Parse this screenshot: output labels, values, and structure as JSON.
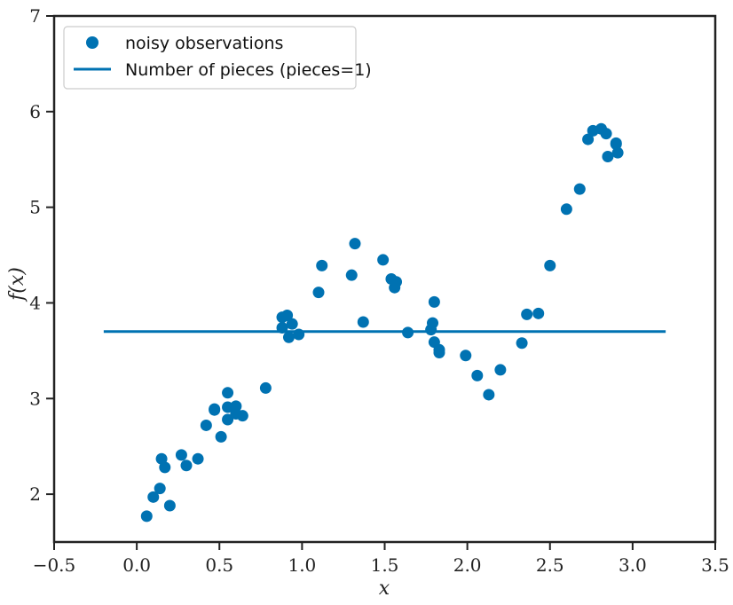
{
  "chart_data": {
    "type": "scatter",
    "xlabel": "x",
    "ylabel": "f(x)",
    "xlim": [
      -0.5,
      3.5
    ],
    "ylim": [
      1.5,
      7.0
    ],
    "xticks": [
      -0.5,
      0.0,
      0.5,
      1.0,
      1.5,
      2.0,
      2.5,
      3.0,
      3.5
    ],
    "xtick_labels": [
      "−0.5",
      "0.0",
      "0.5",
      "1.0",
      "1.5",
      "2.0",
      "2.5",
      "3.0",
      "3.5"
    ],
    "yticks": [
      2,
      3,
      4,
      5,
      6,
      7
    ],
    "ytick_labels": [
      "2",
      "3",
      "4",
      "5",
      "6",
      "7"
    ],
    "grid": false,
    "legend_position": "top-left",
    "colors": {
      "series": "#0072b2",
      "axis": "#222222"
    },
    "series": [
      {
        "name": "noisy observations",
        "kind": "scatter",
        "points": [
          [
            0.06,
            1.77
          ],
          [
            0.1,
            1.97
          ],
          [
            0.14,
            2.06
          ],
          [
            0.15,
            2.37
          ],
          [
            0.17,
            2.28
          ],
          [
            0.2,
            1.88
          ],
          [
            0.27,
            2.41
          ],
          [
            0.3,
            2.3
          ],
          [
            0.37,
            2.37
          ],
          [
            0.42,
            2.72
          ],
          [
            0.47,
            2.88
          ],
          [
            0.47,
            2.89
          ],
          [
            0.51,
            2.6
          ],
          [
            0.55,
            2.91
          ],
          [
            0.55,
            3.06
          ],
          [
            0.55,
            2.78
          ],
          [
            0.6,
            2.92
          ],
          [
            0.6,
            2.84
          ],
          [
            0.64,
            2.82
          ],
          [
            0.78,
            3.11
          ],
          [
            0.88,
            3.85
          ],
          [
            0.88,
            3.74
          ],
          [
            0.91,
            3.87
          ],
          [
            0.92,
            3.64
          ],
          [
            0.94,
            3.78
          ],
          [
            0.98,
            3.67
          ],
          [
            1.1,
            4.11
          ],
          [
            1.12,
            4.39
          ],
          [
            1.3,
            4.29
          ],
          [
            1.32,
            4.62
          ],
          [
            1.37,
            3.8
          ],
          [
            1.49,
            4.45
          ],
          [
            1.54,
            4.25
          ],
          [
            1.56,
            4.16
          ],
          [
            1.57,
            4.22
          ],
          [
            1.64,
            3.69
          ],
          [
            1.78,
            3.72
          ],
          [
            1.79,
            3.79
          ],
          [
            1.8,
            4.01
          ],
          [
            1.8,
            3.59
          ],
          [
            1.83,
            3.48
          ],
          [
            1.83,
            3.51
          ],
          [
            1.99,
            3.45
          ],
          [
            2.06,
            3.24
          ],
          [
            2.13,
            3.04
          ],
          [
            2.2,
            3.3
          ],
          [
            2.33,
            3.58
          ],
          [
            2.36,
            3.88
          ],
          [
            2.43,
            3.89
          ],
          [
            2.5,
            4.39
          ],
          [
            2.6,
            4.98
          ],
          [
            2.68,
            5.19
          ],
          [
            2.73,
            5.71
          ],
          [
            2.76,
            5.8
          ],
          [
            2.81,
            5.82
          ],
          [
            2.84,
            5.77
          ],
          [
            2.85,
            5.53
          ],
          [
            2.9,
            5.67
          ],
          [
            2.9,
            5.66
          ],
          [
            2.91,
            5.57
          ]
        ]
      },
      {
        "name": "Number of pieces (pieces=1)",
        "kind": "line",
        "x": [
          -0.2,
          3.2
        ],
        "y": [
          3.7,
          3.7
        ]
      }
    ]
  }
}
